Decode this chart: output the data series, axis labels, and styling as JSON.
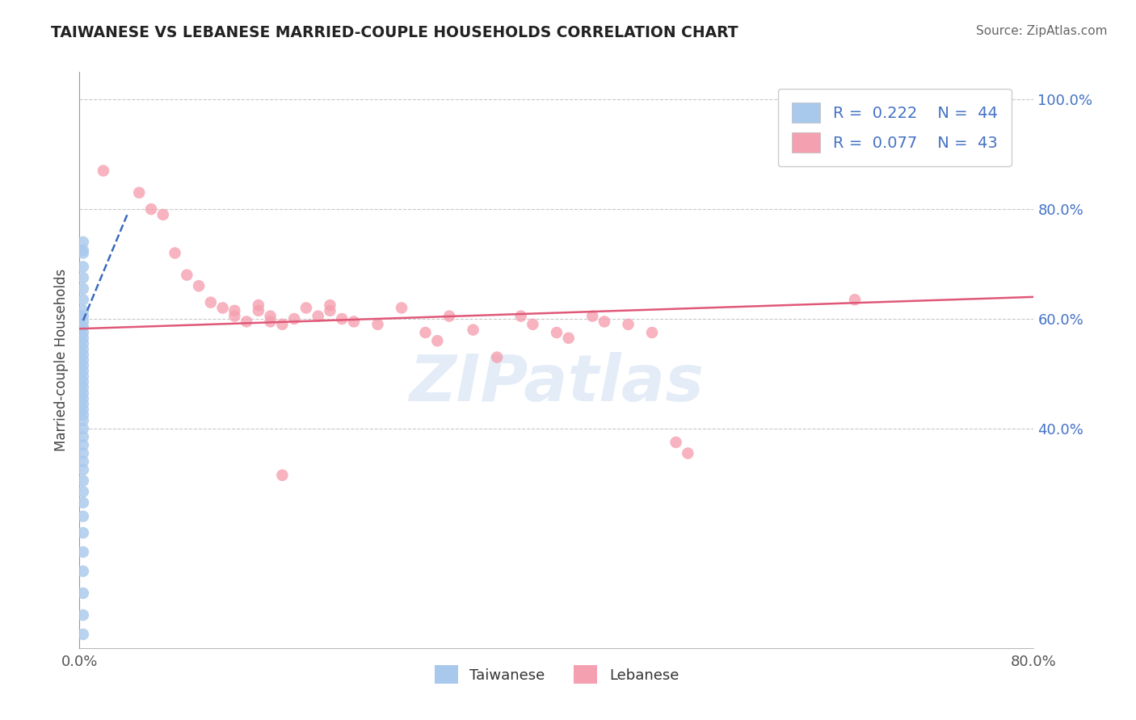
{
  "title": "TAIWANESE VS LEBANESE MARRIED-COUPLE HOUSEHOLDS CORRELATION CHART",
  "source": "Source: ZipAtlas.com",
  "ylabel": "Married-couple Households",
  "xlim": [
    0.0,
    0.8
  ],
  "ylim": [
    0.0,
    1.05
  ],
  "yticks": [
    0.4,
    0.6,
    0.8,
    1.0
  ],
  "ytick_labels": [
    "40.0%",
    "60.0%",
    "80.0%",
    "100.0%"
  ],
  "xticks": [
    0.0,
    0.8
  ],
  "xtick_labels": [
    "0.0%",
    "80.0%"
  ],
  "background_color": "#ffffff",
  "grid_color": "#c8c8c8",
  "watermark": "ZIPatlas",
  "taiwanese_color": "#a8c8ec",
  "lebanese_color": "#f5a0b0",
  "taiwanese_line_color": "#3a6abf",
  "lebanese_line_color": "#e05878",
  "legend_label_1": "Taiwanese",
  "legend_label_2": "Lebanese",
  "taiwanese_points": [
    [
      0.003,
      0.72
    ],
    [
      0.003,
      0.695
    ],
    [
      0.003,
      0.675
    ],
    [
      0.003,
      0.655
    ],
    [
      0.003,
      0.635
    ],
    [
      0.003,
      0.615
    ],
    [
      0.003,
      0.605
    ],
    [
      0.003,
      0.595
    ],
    [
      0.003,
      0.585
    ],
    [
      0.003,
      0.575
    ],
    [
      0.003,
      0.565
    ],
    [
      0.003,
      0.555
    ],
    [
      0.003,
      0.545
    ],
    [
      0.003,
      0.535
    ],
    [
      0.003,
      0.525
    ],
    [
      0.003,
      0.515
    ],
    [
      0.003,
      0.505
    ],
    [
      0.003,
      0.495
    ],
    [
      0.003,
      0.485
    ],
    [
      0.003,
      0.475
    ],
    [
      0.003,
      0.465
    ],
    [
      0.003,
      0.455
    ],
    [
      0.003,
      0.445
    ],
    [
      0.003,
      0.435
    ],
    [
      0.003,
      0.425
    ],
    [
      0.003,
      0.415
    ],
    [
      0.003,
      0.4
    ],
    [
      0.003,
      0.385
    ],
    [
      0.003,
      0.37
    ],
    [
      0.003,
      0.355
    ],
    [
      0.003,
      0.34
    ],
    [
      0.003,
      0.325
    ],
    [
      0.003,
      0.305
    ],
    [
      0.003,
      0.285
    ],
    [
      0.003,
      0.265
    ],
    [
      0.003,
      0.24
    ],
    [
      0.003,
      0.21
    ],
    [
      0.003,
      0.175
    ],
    [
      0.003,
      0.14
    ],
    [
      0.003,
      0.1
    ],
    [
      0.003,
      0.06
    ],
    [
      0.003,
      0.025
    ],
    [
      0.003,
      0.725
    ],
    [
      0.003,
      0.74
    ]
  ],
  "lebanese_points": [
    [
      0.02,
      0.87
    ],
    [
      0.05,
      0.83
    ],
    [
      0.06,
      0.8
    ],
    [
      0.07,
      0.79
    ],
    [
      0.08,
      0.72
    ],
    [
      0.09,
      0.68
    ],
    [
      0.1,
      0.66
    ],
    [
      0.11,
      0.63
    ],
    [
      0.12,
      0.62
    ],
    [
      0.13,
      0.615
    ],
    [
      0.13,
      0.605
    ],
    [
      0.14,
      0.595
    ],
    [
      0.15,
      0.625
    ],
    [
      0.15,
      0.615
    ],
    [
      0.16,
      0.605
    ],
    [
      0.16,
      0.595
    ],
    [
      0.17,
      0.59
    ],
    [
      0.18,
      0.6
    ],
    [
      0.19,
      0.62
    ],
    [
      0.2,
      0.605
    ],
    [
      0.21,
      0.625
    ],
    [
      0.21,
      0.615
    ],
    [
      0.22,
      0.6
    ],
    [
      0.23,
      0.595
    ],
    [
      0.25,
      0.59
    ],
    [
      0.27,
      0.62
    ],
    [
      0.29,
      0.575
    ],
    [
      0.3,
      0.56
    ],
    [
      0.31,
      0.605
    ],
    [
      0.33,
      0.58
    ],
    [
      0.35,
      0.53
    ],
    [
      0.37,
      0.605
    ],
    [
      0.38,
      0.59
    ],
    [
      0.4,
      0.575
    ],
    [
      0.41,
      0.565
    ],
    [
      0.43,
      0.605
    ],
    [
      0.44,
      0.595
    ],
    [
      0.46,
      0.59
    ],
    [
      0.48,
      0.575
    ],
    [
      0.5,
      0.375
    ],
    [
      0.51,
      0.355
    ],
    [
      0.65,
      0.635
    ],
    [
      0.17,
      0.315
    ]
  ],
  "taiwanese_trendline": [
    [
      0.003,
      0.597
    ],
    [
      0.04,
      0.79
    ]
  ],
  "lebanese_trendline": [
    [
      0.0,
      0.582
    ],
    [
      0.8,
      0.64
    ]
  ]
}
